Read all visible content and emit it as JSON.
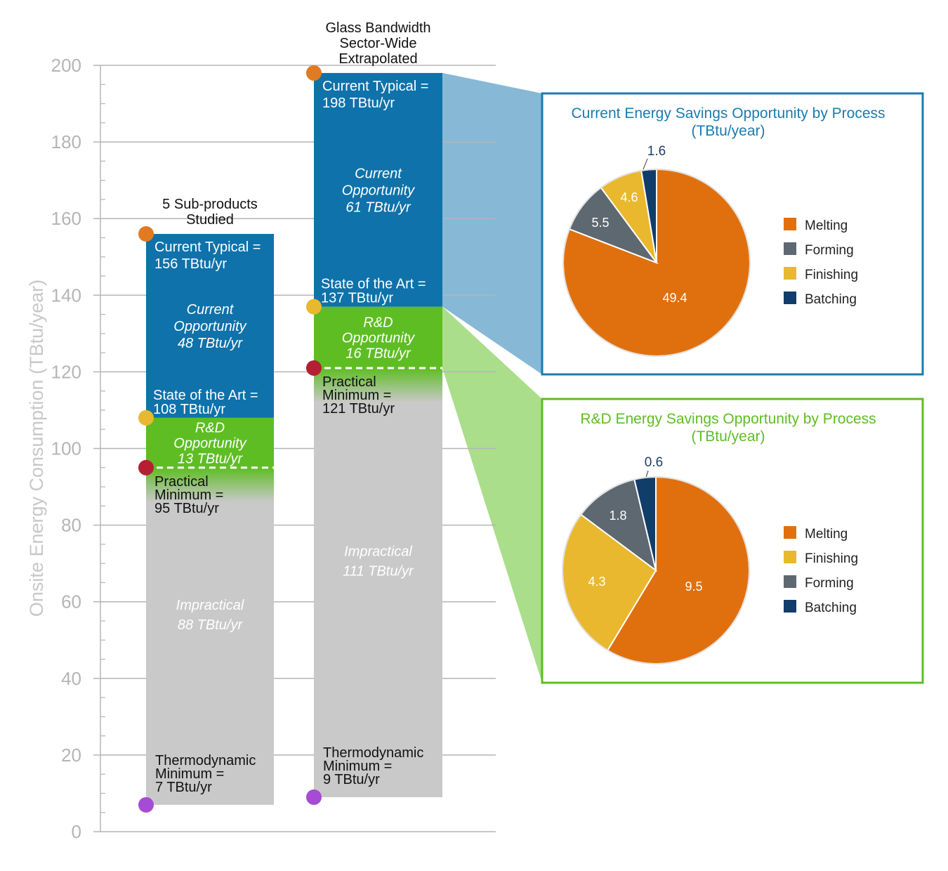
{
  "chart_data": [
    {
      "type": "bar",
      "subtype": "stacked-floating",
      "ylabel": "Onsite Energy Consumption (TBtu/year)",
      "ylim": [
        0,
        200
      ],
      "yticks": [
        0,
        20,
        40,
        60,
        80,
        100,
        120,
        140,
        160,
        180,
        200
      ],
      "grid": true,
      "columns": [
        {
          "title": [
            "5 Sub-products",
            "Studied"
          ],
          "current_typical": 156,
          "state_of_the_art": 108,
          "practical_minimum": 95,
          "thermodynamic_minimum": 7,
          "segments": [
            {
              "key": "current",
              "from": 108,
              "to": 156,
              "color": "#0f72aa",
              "label": [
                "Current",
                "Opportunity",
                "48 TBtu/yr"
              ]
            },
            {
              "key": "rd",
              "from": 95,
              "to": 108,
              "color": "#5ebd23",
              "label": [
                "R&D",
                "Opportunity",
                "13 TBtu/yr"
              ]
            },
            {
              "key": "impractical",
              "from": 7,
              "to": 95,
              "color": "#c9c9c9",
              "label": [
                "Impractical",
                "88 TBtu/yr"
              ]
            }
          ],
          "callouts": {
            "current_typical": [
              "Current Typical =",
              "156 TBtu/yr"
            ],
            "state_of_the_art": [
              "State of the Art =",
              "108 TBtu/yr"
            ],
            "practical_minimum": [
              "Practical",
              "Minimum =",
              "95 TBtu/yr"
            ],
            "thermodynamic_minimum": [
              "Thermodynamic",
              "Minimum =",
              "7 TBtu/yr"
            ]
          }
        },
        {
          "title": [
            "Glass Bandwidth",
            "Sector-Wide",
            "Extrapolated"
          ],
          "current_typical": 198,
          "state_of_the_art": 137,
          "practical_minimum": 121,
          "thermodynamic_minimum": 9,
          "segments": [
            {
              "key": "current",
              "from": 137,
              "to": 198,
              "color": "#0f72aa",
              "label": [
                "Current",
                "Opportunity",
                "61 TBtu/yr"
              ]
            },
            {
              "key": "rd",
              "from": 121,
              "to": 137,
              "color": "#5ebd23",
              "label": [
                "R&D",
                "Opportunity",
                "16 TBtu/yr"
              ]
            },
            {
              "key": "impractical",
              "from": 9,
              "to": 121,
              "color": "#c9c9c9",
              "label": [
                "Impractical",
                "111 TBtu/yr"
              ]
            }
          ],
          "callouts": {
            "current_typical": [
              "Current Typical =",
              "198 TBtu/yr"
            ],
            "state_of_the_art": [
              "State of the Art =",
              "137 TBtu/yr"
            ],
            "practical_minimum": [
              "Practical",
              "Minimum =",
              "121 TBtu/yr"
            ],
            "thermodynamic_minimum": [
              "Thermodynamic",
              "Minimum =",
              "9 TBtu/yr"
            ]
          }
        }
      ],
      "marker_colors": {
        "current_typical": "#e07b22",
        "state_of_the_art": "#e8b830",
        "practical_minimum": "#b51f33",
        "thermodynamic_minimum": "#a64bd6"
      }
    },
    {
      "type": "pie",
      "title": [
        "Current Energy Savings Opportunity by Process",
        "(TBtu/year)"
      ],
      "title_color": "#1a7bb0",
      "border_color": "#1a7bb0",
      "slices": [
        {
          "label": "Melting",
          "value": 49.4,
          "color": "#e0700e"
        },
        {
          "label": "Forming",
          "value": 5.5,
          "color": "#5e6870"
        },
        {
          "label": "Finishing",
          "value": 4.6,
          "color": "#e9b82e"
        },
        {
          "label": "Batching",
          "value": 1.6,
          "color": "#113d6b"
        }
      ],
      "legend": [
        "Melting",
        "Forming",
        "Finishing",
        "Batching"
      ],
      "legend_position": "right"
    },
    {
      "type": "pie",
      "title": [
        "R&D Energy Savings Opportunity by Process",
        "(TBtu/year)"
      ],
      "title_color": "#5ebd23",
      "border_color": "#5ebd23",
      "slices": [
        {
          "label": "Melting",
          "value": 9.5,
          "color": "#e0700e"
        },
        {
          "label": "Finishing",
          "value": 4.3,
          "color": "#e9b82e"
        },
        {
          "label": "Forming",
          "value": 1.8,
          "color": "#5e6870"
        },
        {
          "label": "Batching",
          "value": 0.6,
          "color": "#113d6b"
        }
      ],
      "legend": [
        "Melting",
        "Finishing",
        "Forming",
        "Batching"
      ],
      "legend_position": "right"
    }
  ]
}
